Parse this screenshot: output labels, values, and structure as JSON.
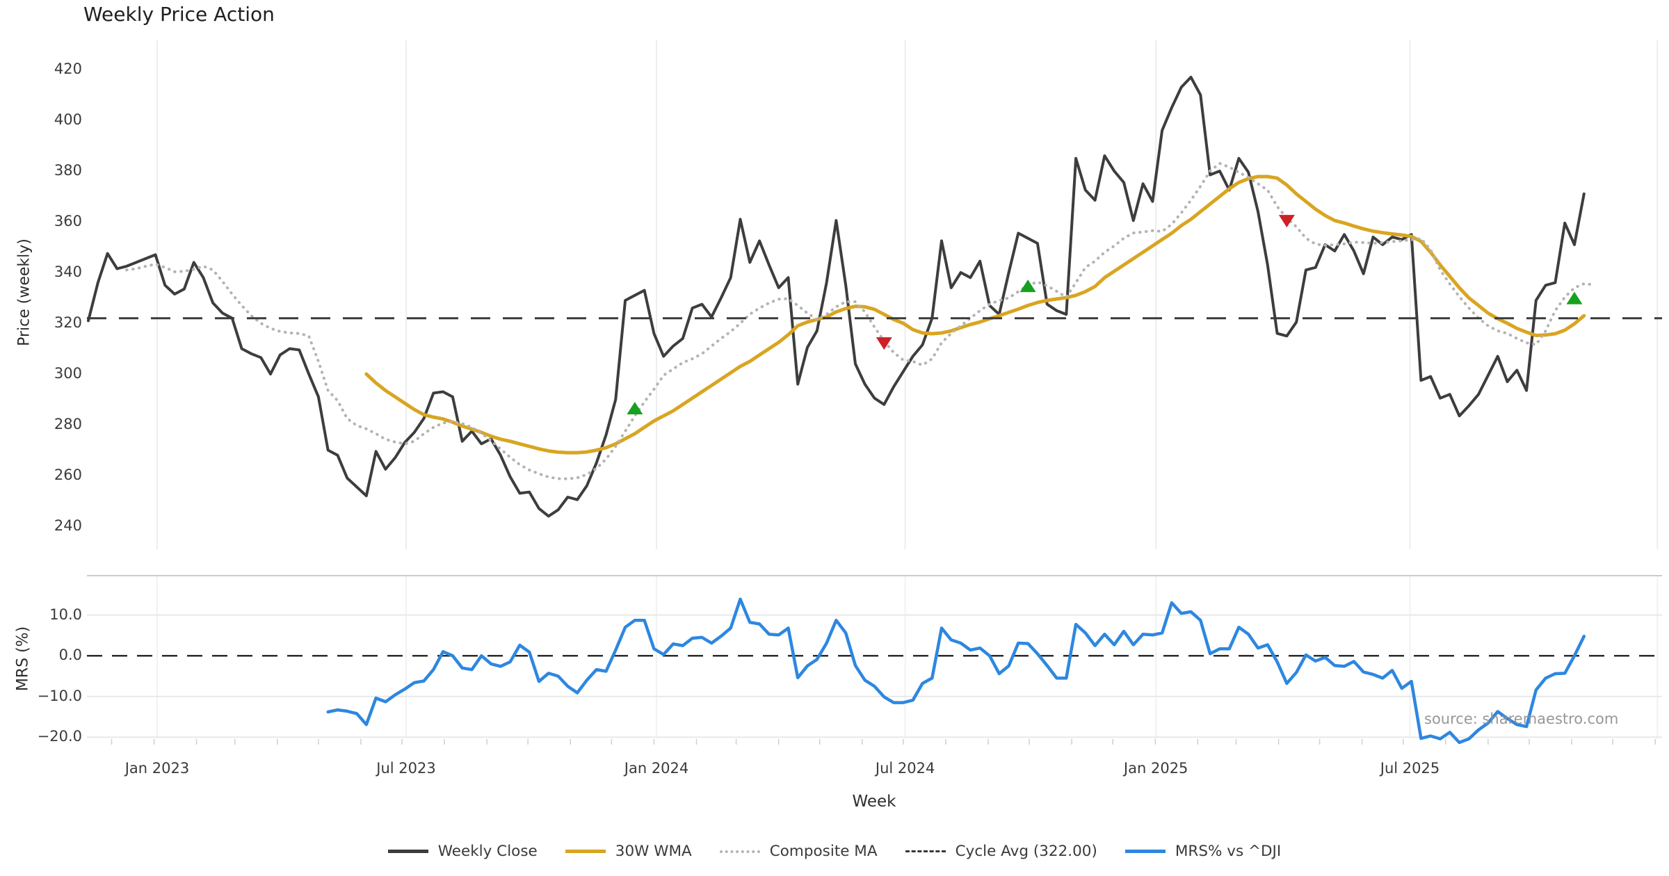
{
  "title": "Weekly Price Action",
  "source": "source: sharemaestro.com",
  "axes": {
    "price_label": "Price (weekly)",
    "mrs_label": "MRS (%)",
    "x_label": "Week",
    "price_ticks": [
      420,
      400,
      380,
      360,
      340,
      320,
      300,
      280,
      260,
      240
    ],
    "mrs_ticks": [
      {
        "label": "10.0",
        "value": 10
      },
      {
        "label": "0.0",
        "value": 0
      },
      {
        "label": "−10.0",
        "value": -10
      },
      {
        "label": "−20.0",
        "value": -20
      }
    ],
    "x_ticks": [
      {
        "label": "Jan 2023",
        "week": 7.18
      },
      {
        "label": "Jul 2023",
        "week": 33.15
      },
      {
        "label": "Jan 2024",
        "week": 59.26
      },
      {
        "label": "Jul 2024",
        "week": 85.2
      },
      {
        "label": "Jan 2025",
        "week": 111.35
      },
      {
        "label": "Jul 2025",
        "week": 137.85
      },
      {
        "label": "",
        "week": 163.65
      }
    ]
  },
  "chart_data": {
    "type": "line",
    "title": "Weekly Price Action",
    "x_frequency": "weekly",
    "x_start_date": "2022-11-14",
    "x_axis_label": "Week",
    "panels": [
      {
        "id": "price",
        "ylabel": "Price (weekly)",
        "ylim": [
          231,
          424
        ],
        "yticks": [
          240,
          260,
          280,
          300,
          320,
          340,
          360,
          380,
          400,
          420
        ],
        "grid": "vertical-only"
      },
      {
        "id": "mrs",
        "ylabel": "MRS (%)",
        "ylim": [
          -22.5,
          19.6
        ],
        "yticks": [
          -20,
          -10,
          0,
          10
        ],
        "grid": "horizontal+vertical"
      }
    ],
    "cycle_avg": 322.0,
    "mrs_zero_line": 0,
    "series": [
      {
        "name": "Weekly Close",
        "panel": "price",
        "color": "#3d3d3d",
        "style": "solid",
        "width": 4,
        "start_week": 0,
        "values": [
          321,
          336,
          347.5,
          341.5,
          342.5,
          344,
          345.5,
          347,
          335,
          331.5,
          333.5,
          344,
          338,
          328,
          324,
          322,
          310,
          308,
          306.5,
          300,
          307.5,
          310,
          309.5,
          300,
          291,
          270,
          268,
          259,
          255.5,
          252,
          269.5,
          262.5,
          267,
          273,
          277,
          282.5,
          292.5,
          293,
          291,
          273.5,
          277.5,
          272.5,
          274.5,
          268,
          259.5,
          253,
          253.5,
          247,
          244,
          246.5,
          251.5,
          250.5,
          256,
          265,
          276,
          290,
          329,
          331,
          333,
          316,
          307,
          311,
          314,
          326,
          327.5,
          322.5,
          330,
          338,
          361,
          344,
          352.5,
          343,
          334,
          338,
          296,
          310.5,
          317,
          336,
          360.5,
          335,
          304,
          296,
          290.5,
          288,
          295,
          301,
          307,
          311.5,
          322,
          352.5,
          334,
          340,
          338,
          344.5,
          327,
          323.5,
          340,
          355.5,
          353.5,
          351.5,
          327.5,
          325,
          323.5,
          385,
          372.5,
          368.5,
          386,
          380,
          375.5,
          360.5,
          375,
          368,
          396,
          405,
          413,
          417,
          410,
          378.5,
          380,
          372.5,
          385,
          379.5,
          364,
          343,
          316,
          315,
          320.5,
          341,
          342,
          351,
          348.5,
          355,
          348.5,
          339.5,
          354,
          351,
          354,
          353,
          355,
          297.5,
          299,
          290.5,
          292,
          283.5,
          287.5,
          292,
          299.5,
          307,
          297,
          301.5,
          293.5,
          329,
          335,
          336,
          359.5,
          351,
          371
        ]
      },
      {
        "name": "30W WMA",
        "panel": "price",
        "color": "#d9a521",
        "style": "solid",
        "width": 5,
        "start_week": 29,
        "values": [
          300,
          296.5,
          293.5,
          291,
          288.5,
          286,
          284,
          283,
          282.3,
          281,
          279.5,
          278.3,
          277,
          275.5,
          274.3,
          273.5,
          272.5,
          271.5,
          270.5,
          269.7,
          269.2,
          269,
          269,
          269.3,
          270,
          271,
          272.5,
          274.5,
          276.5,
          279,
          281.5,
          283.5,
          285.5,
          288,
          290.5,
          293,
          295.5,
          298,
          300.5,
          303,
          305,
          307.5,
          310,
          312.5,
          315.5,
          319,
          320.5,
          321.5,
          322.5,
          324.5,
          325.8,
          326.7,
          326.5,
          325.5,
          323.5,
          321.5,
          320,
          317.5,
          316.2,
          315.9,
          316.2,
          317,
          318.3,
          319.5,
          320.5,
          321.8,
          323,
          324.3,
          325.6,
          327,
          328.2,
          329,
          329.6,
          330.1,
          331,
          332.5,
          334.5,
          338,
          340.5,
          343,
          345.5,
          348,
          350.5,
          353,
          355.5,
          358.5,
          361,
          364,
          367,
          370,
          373,
          375.5,
          377,
          377.8,
          377.8,
          377.2,
          374.5,
          371,
          368,
          365,
          362.5,
          360.5,
          359.5,
          358.3,
          357.2,
          356.3,
          355.7,
          355.2,
          354.8,
          354.2,
          352.3,
          348,
          343,
          338.5,
          334,
          330,
          327,
          324,
          321.8,
          320,
          318,
          316.5,
          315.2,
          315.4,
          315.9,
          317.3,
          319.8,
          323
        ]
      },
      {
        "name": "Composite MA",
        "panel": "price",
        "color": "#b3b3b3",
        "style": "dotted",
        "width": 4,
        "start_week": 4,
        "values": [
          341,
          341.5,
          342.5,
          343.3,
          342,
          340.3,
          340.5,
          341.3,
          342.5,
          341,
          336.5,
          331.5,
          327,
          323,
          320,
          318,
          316.8,
          316.2,
          316,
          315,
          305,
          293.5,
          289.5,
          282.5,
          279.7,
          278.4,
          276.5,
          274.3,
          273.2,
          272.5,
          273.5,
          276.5,
          279,
          280.7,
          281.2,
          280.5,
          279,
          276.6,
          273.8,
          270.5,
          267.2,
          264.3,
          262.2,
          260.7,
          259.4,
          258.8,
          258.7,
          259.1,
          260.4,
          262.8,
          266.5,
          271.5,
          277.5,
          283.5,
          289,
          294,
          299.5,
          302,
          304.5,
          306,
          308,
          311,
          314,
          316.7,
          320,
          323.6,
          326,
          328,
          329.5,
          329.7,
          327,
          324,
          321.5,
          323.5,
          326.5,
          328.5,
          328.5,
          324.5,
          318.5,
          313,
          308.5,
          305.5,
          305,
          303.5,
          306,
          312.3,
          316,
          319,
          322,
          325,
          327.5,
          329,
          330,
          332.5,
          335,
          336.3,
          334.8,
          332.6,
          330.3,
          336,
          342,
          344.5,
          348,
          350.5,
          353.5,
          355.6,
          356,
          356.5,
          356.2,
          359,
          363.5,
          368.5,
          374,
          380,
          383,
          381.5,
          379.5,
          377.5,
          375,
          372.5,
          366,
          361.5,
          358,
          353.5,
          351.2,
          350.7,
          351,
          351.3,
          352,
          351.8,
          351.5,
          351.8,
          352.2,
          352.5,
          352.9,
          353.4,
          349,
          341,
          335.5,
          330.5,
          326,
          322,
          319,
          317,
          316,
          314,
          312.3,
          311.6,
          317,
          325,
          330.3,
          334,
          335.6,
          335.2
        ]
      },
      {
        "name": "Cycle Avg (322.00)",
        "panel": "price",
        "color": "#3a3a3a",
        "style": "dashed",
        "width": 3,
        "type": "hline",
        "value": 322
      },
      {
        "name": "MRS% vs ^DJI",
        "panel": "mrs",
        "color": "#2d87e0",
        "style": "solid",
        "width": 4.5,
        "start_week": 25,
        "values": [
          -13.8,
          -13.3,
          -13.6,
          -14.2,
          -16.9,
          -10.4,
          -11.3,
          -9.6,
          -8.2,
          -6.6,
          -6.2,
          -3.4,
          1.0,
          0.0,
          -3.0,
          -3.4,
          0.0,
          -2.0,
          -2.6,
          -1.5,
          2.6,
          0.9,
          -6.3,
          -4.3,
          -5.0,
          -7.5,
          -9.1,
          -6.0,
          -3.4,
          -3.8,
          1.4,
          7.0,
          8.7,
          8.7,
          1.7,
          0.3,
          2.9,
          2.5,
          4.3,
          4.5,
          3.1,
          4.8,
          6.8,
          13.9,
          8.2,
          7.8,
          5.3,
          5.1,
          6.8,
          -5.4,
          -2.5,
          -0.9,
          3.1,
          8.7,
          5.6,
          -2.4,
          -6.0,
          -7.5,
          -10.1,
          -11.5,
          -11.5,
          -10.9,
          -6.8,
          -5.5,
          6.8,
          3.9,
          3.1,
          1.4,
          1.9,
          0.0,
          -4.4,
          -2.5,
          3.1,
          3.0,
          0.5,
          -2.4,
          -5.5,
          -5.5,
          7.7,
          5.6,
          2.5,
          5.3,
          2.7,
          6.0,
          2.7,
          5.3,
          5.1,
          5.6,
          13.0,
          10.4,
          10.8,
          8.7,
          0.5,
          1.7,
          1.7,
          7.0,
          5.3,
          1.9,
          2.7,
          -1.5,
          -6.8,
          -4.1,
          0.2,
          -1.3,
          -0.4,
          -2.4,
          -2.6,
          -1.4,
          -4.0,
          -4.6,
          -5.5,
          -3.6,
          -8.0,
          -6.3,
          -20.3,
          -19.7,
          -20.4,
          -18.8,
          -21.3,
          -20.4,
          -18.2,
          -16.5,
          -13.7,
          -15.4,
          -16.9,
          -17.4,
          -8.4,
          -5.5,
          -4.4,
          -4.3,
          0.0,
          4.8
        ]
      }
    ],
    "markers": {
      "buy": {
        "shape": "triangle-up",
        "color": "#16a11f",
        "points": [
          {
            "week": 57,
            "price": 286.3
          },
          {
            "week": 98,
            "price": 334.5
          },
          {
            "week": 155,
            "price": 329.7
          }
        ]
      },
      "sell": {
        "shape": "triangle-down",
        "color": "#cf2026",
        "points": [
          {
            "week": 83,
            "price": 312.3
          },
          {
            "week": 125,
            "price": 360.5
          }
        ]
      }
    },
    "legend_position": "bottom-center"
  },
  "legend": {
    "items": [
      {
        "label": "Weekly Close",
        "style": "solid",
        "color": "#3d3d3d"
      },
      {
        "label": "30W WMA",
        "style": "solid",
        "color": "#d9a521"
      },
      {
        "label": "Composite MA",
        "style": "dotted",
        "color": "#b3b3b3"
      },
      {
        "label": "Cycle Avg (322.00)",
        "style": "dashed",
        "color": "#3a3a3a"
      },
      {
        "label": "MRS% vs ^DJI",
        "style": "solid",
        "color": "#2d87e0"
      }
    ]
  }
}
